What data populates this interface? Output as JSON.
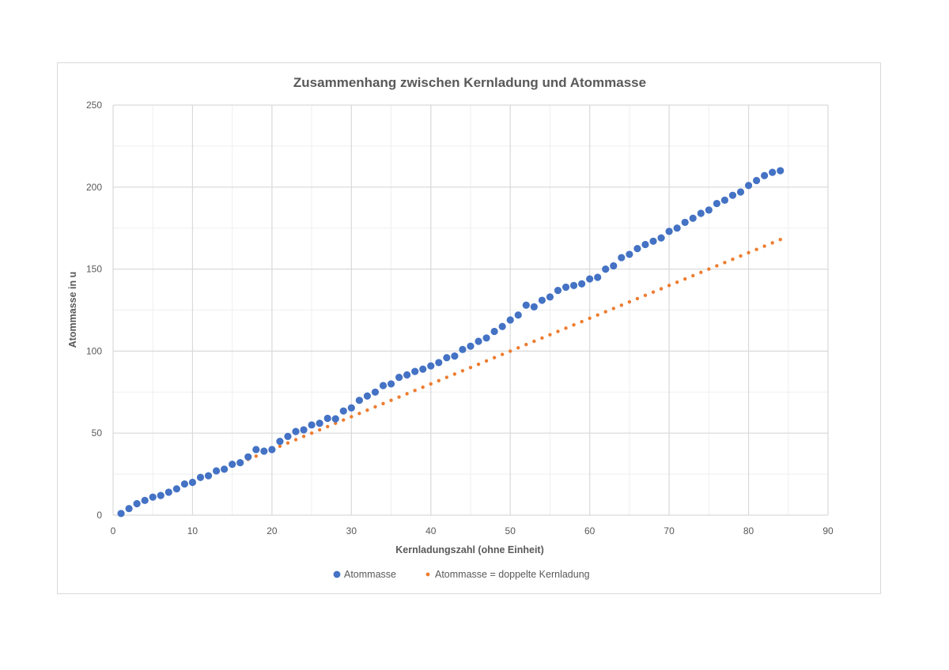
{
  "chart_data": {
    "type": "scatter",
    "title": "Zusammenhang zwischen Kernladung und Atommasse",
    "xlabel": "Kernladungszahl (ohne Einheit)",
    "ylabel": "Atommasse in u",
    "xlim": [
      0,
      90
    ],
    "ylim": [
      0,
      250
    ],
    "x_ticks": [
      0,
      10,
      20,
      30,
      40,
      50,
      60,
      70,
      80,
      90
    ],
    "y_ticks": [
      0,
      50,
      100,
      150,
      200,
      250
    ],
    "grid": true,
    "legend_position": "bottom",
    "series": [
      {
        "name": "Atommasse",
        "color": "#4472c4",
        "marker": "circle",
        "x": [
          1,
          2,
          3,
          4,
          5,
          6,
          7,
          8,
          9,
          10,
          11,
          12,
          13,
          14,
          15,
          16,
          17,
          18,
          19,
          20,
          21,
          22,
          23,
          24,
          25,
          26,
          27,
          28,
          29,
          30,
          31,
          32,
          33,
          34,
          35,
          36,
          37,
          38,
          39,
          40,
          41,
          42,
          43,
          44,
          45,
          46,
          47,
          48,
          49,
          50,
          51,
          52,
          53,
          54,
          55,
          56,
          57,
          58,
          59,
          60,
          61,
          62,
          63,
          64,
          65,
          66,
          67,
          68,
          69,
          70,
          71,
          72,
          73,
          74,
          75,
          76,
          77,
          78,
          79,
          80,
          81,
          82,
          83,
          84
        ],
        "y": [
          1,
          4,
          7,
          9,
          11,
          12,
          14,
          16,
          19,
          20,
          23,
          24,
          27,
          28,
          31,
          32,
          35.5,
          40,
          39,
          40,
          45,
          48,
          51,
          52,
          55,
          56,
          59,
          58.7,
          63.5,
          65.4,
          70,
          72.6,
          75,
          79,
          80,
          84,
          85.5,
          87.6,
          89,
          91,
          93,
          96,
          97,
          101,
          103,
          106,
          108,
          112,
          115,
          119,
          122,
          128,
          127,
          131,
          133,
          137,
          139,
          140,
          141,
          144,
          145,
          150,
          152,
          157,
          159,
          162.5,
          165,
          167,
          169,
          173,
          175,
          178.5,
          181,
          184,
          186,
          190,
          192,
          195,
          197,
          201,
          204,
          207,
          209,
          210
        ]
      },
      {
        "name": "Atommasse = doppelte Kernladung",
        "color": "#ed7d31",
        "marker": "small-circle",
        "x": [
          1,
          2,
          3,
          4,
          5,
          6,
          7,
          8,
          9,
          10,
          11,
          12,
          13,
          14,
          15,
          16,
          17,
          18,
          19,
          20,
          21,
          22,
          23,
          24,
          25,
          26,
          27,
          28,
          29,
          30,
          31,
          32,
          33,
          34,
          35,
          36,
          37,
          38,
          39,
          40,
          41,
          42,
          43,
          44,
          45,
          46,
          47,
          48,
          49,
          50,
          51,
          52,
          53,
          54,
          55,
          56,
          57,
          58,
          59,
          60,
          61,
          62,
          63,
          64,
          65,
          66,
          67,
          68,
          69,
          70,
          71,
          72,
          73,
          74,
          75,
          76,
          77,
          78,
          79,
          80,
          81,
          82,
          83,
          84
        ],
        "y": [
          2,
          4,
          6,
          8,
          10,
          12,
          14,
          16,
          18,
          20,
          22,
          24,
          26,
          28,
          30,
          32,
          34,
          36,
          38,
          40,
          42,
          44,
          46,
          48,
          50,
          52,
          54,
          56,
          58,
          60,
          62,
          64,
          66,
          68,
          70,
          72,
          74,
          76,
          78,
          80,
          82,
          84,
          86,
          88,
          90,
          92,
          94,
          96,
          98,
          100,
          102,
          104,
          106,
          108,
          110,
          112,
          114,
          116,
          118,
          120,
          122,
          124,
          126,
          128,
          130,
          132,
          134,
          136,
          138,
          140,
          142,
          144,
          146,
          148,
          150,
          152,
          154,
          156,
          158,
          160,
          162,
          164,
          166,
          168
        ]
      }
    ]
  }
}
